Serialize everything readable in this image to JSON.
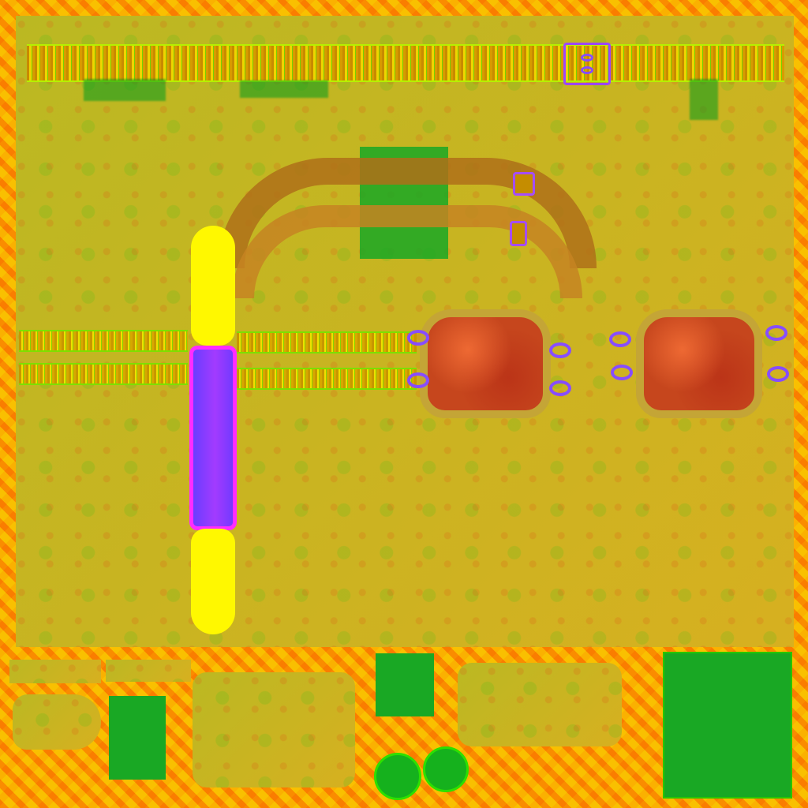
{
  "texture_sheet": {
    "colors": {
      "background": "#f5a700",
      "panel": "#d6b126",
      "green": "#19a824",
      "yellow": "#fff800",
      "purple": "#9b47ff",
      "magenta": "#ff2cff",
      "lens": "#c6461d"
    },
    "regions": [
      "top-strap",
      "main-panel",
      "left-pocket",
      "goggle-lenses",
      "bottom-pieces"
    ]
  }
}
